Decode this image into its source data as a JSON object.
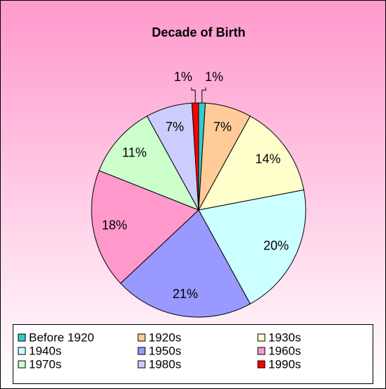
{
  "chart_data": {
    "type": "pie",
    "title": "Decade of Birth",
    "categories": [
      "Before 1920",
      "1920s",
      "1930s",
      "1940s",
      "1950s",
      "1960s",
      "1970s",
      "1980s",
      "1990s"
    ],
    "values": [
      1,
      7,
      14,
      20,
      21,
      18,
      11,
      7,
      1
    ],
    "value_labels": [
      "1%",
      "7%",
      "14%",
      "20%",
      "21%",
      "18%",
      "11%",
      "7%",
      "1%"
    ],
    "colors": [
      "#33cccc",
      "#ffcc99",
      "#ffffcc",
      "#ccffff",
      "#9999ff",
      "#ff99cc",
      "#ccffcc",
      "#ccccff",
      "#ff0000"
    ],
    "legend": "bottom"
  }
}
